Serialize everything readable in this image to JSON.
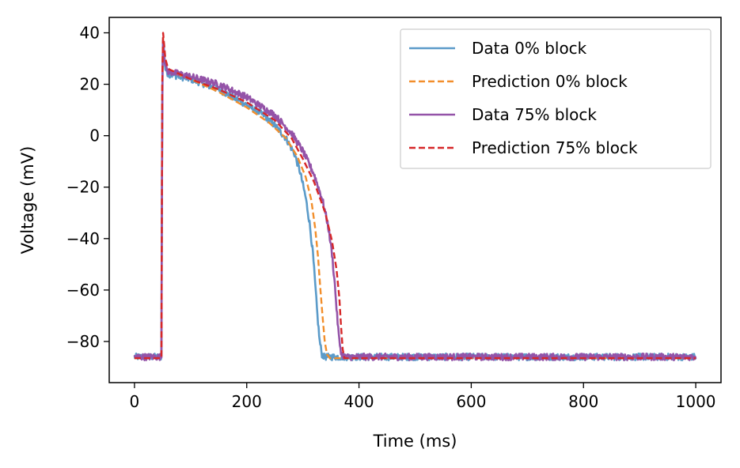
{
  "chart_data": {
    "type": "line",
    "xlabel": "Time (ms)",
    "ylabel": "Voltage (mV)",
    "xlim": [
      -45,
      1045
    ],
    "ylim": [
      -96,
      46
    ],
    "xticks": [
      0,
      200,
      400,
      600,
      800,
      1000
    ],
    "xtick_labels": [
      "0",
      "200",
      "400",
      "600",
      "800",
      "1000"
    ],
    "yticks": [
      -80,
      -60,
      -40,
      -20,
      0,
      20,
      40
    ],
    "ytick_labels": [
      "−80",
      "−60",
      "−40",
      "−20",
      "0",
      "20",
      "40"
    ],
    "grid": false,
    "legend_position": "top-right",
    "series": [
      {
        "name": "Data 0% block",
        "color": "#5b9bc9",
        "style": "solid",
        "noisy": true,
        "x": [
          0,
          48,
          49.5,
          51,
          55,
          60,
          80,
          100,
          150,
          200,
          230,
          250,
          270,
          285,
          295,
          305,
          312,
          318,
          322,
          326,
          330,
          334,
          338,
          345,
          360,
          400,
          500,
          600,
          700,
          800,
          900,
          1000
        ],
        "y": [
          -86,
          -86,
          20,
          37,
          26,
          24,
          23,
          22,
          18,
          12,
          8,
          4,
          -1,
          -7,
          -14,
          -24,
          -34,
          -46,
          -58,
          -70,
          -80,
          -85,
          -86,
          -86,
          -86,
          -86,
          -86,
          -86,
          -86,
          -86,
          -86,
          -86
        ]
      },
      {
        "name": "Prediction 0% block",
        "color": "#f28e2b",
        "style": "dashed",
        "noisy": false,
        "x": [
          0,
          48,
          49.5,
          51,
          55,
          60,
          80,
          100,
          150,
          200,
          240,
          270,
          290,
          305,
          315,
          322,
          327,
          331,
          335,
          339,
          343,
          348,
          355,
          400,
          500,
          600,
          700,
          800,
          900,
          1000
        ],
        "y": [
          -86.5,
          -86.5,
          20,
          38,
          28,
          25,
          23.5,
          22,
          17,
          11,
          5,
          -1,
          -8,
          -16,
          -25,
          -36,
          -47,
          -59,
          -70,
          -80,
          -85,
          -86.5,
          -86.5,
          -86.5,
          -86.5,
          -86.5,
          -86.5,
          -86.5,
          -86.5,
          -86.5
        ]
      },
      {
        "name": "Data 75% block",
        "color": "#9453a8",
        "style": "solid",
        "noisy": true,
        "x": [
          0,
          48,
          49.5,
          51,
          55,
          60,
          80,
          100,
          150,
          200,
          250,
          280,
          300,
          320,
          335,
          345,
          352,
          357,
          361,
          365,
          369,
          375,
          385,
          400,
          500,
          600,
          700,
          800,
          900,
          1000
        ],
        "y": [
          -86,
          -86,
          20,
          38,
          27,
          25,
          24,
          23,
          20,
          15,
          8,
          1,
          -6,
          -15,
          -25,
          -35,
          -46,
          -58,
          -70,
          -80,
          -85,
          -86,
          -86,
          -86,
          -86,
          -86,
          -86,
          -86,
          -86,
          -86
        ]
      },
      {
        "name": "Prediction 75% block",
        "color": "#d62728",
        "style": "dashed",
        "noisy": false,
        "x": [
          0,
          48,
          49.5,
          51,
          55,
          60,
          80,
          100,
          150,
          200,
          250,
          280,
          300,
          320,
          340,
          352,
          360,
          365,
          368,
          371,
          374,
          380,
          400,
          500,
          600,
          700,
          800,
          900,
          1000
        ],
        "y": [
          -86.5,
          -86.5,
          20,
          40,
          30,
          26,
          24,
          22,
          18,
          13,
          6,
          -1,
          -9,
          -18,
          -30,
          -41,
          -52,
          -63,
          -74,
          -83,
          -86.5,
          -86.5,
          -86.5,
          -86.5,
          -86.5,
          -86.5,
          -86.5,
          -86.5,
          -86.5
        ]
      }
    ]
  }
}
